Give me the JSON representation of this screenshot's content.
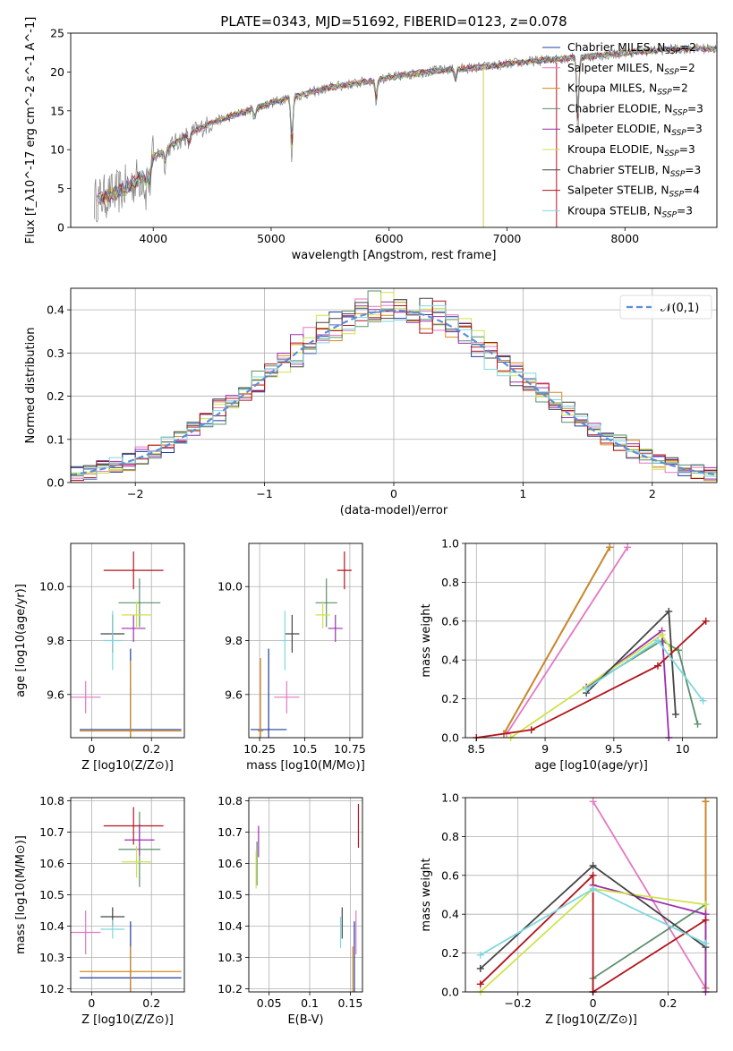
{
  "figure": {
    "title": "PLATE=0343, MJD=51692, FIBERID=0123, z=0.078"
  },
  "chart_data": [
    {
      "id": "spectrum",
      "type": "line",
      "title": "PLATE=0343, MJD=51692, FIBERID=0123, z=0.078",
      "xlabel": "wavelength [Angstrom, rest frame]",
      "ylabel": "Flux [f_λ10^-17 erg cm^-2 s^-1 A^-1]",
      "xlim": [
        3300,
        8780
      ],
      "ylim": [
        0,
        25
      ],
      "xticks": [
        4000,
        5000,
        6000,
        7000,
        8000
      ],
      "yticks": [
        0,
        5,
        10,
        15,
        20,
        25
      ],
      "grid": false,
      "legend": "right",
      "continuum": {
        "x": [
          3500,
          3700,
          3900,
          4000,
          4100,
          4300,
          4500,
          4700,
          4900,
          5100,
          5300,
          5500,
          5700,
          5900,
          6100,
          6300,
          6500,
          6700,
          6900,
          7100,
          7300,
          7500,
          7700,
          7900,
          8100,
          8300,
          8500,
          8780
        ],
        "y": [
          3.5,
          4.5,
          6.5,
          9.0,
          10.0,
          12.0,
          13.5,
          14.5,
          15.5,
          16.5,
          17.2,
          18.0,
          18.5,
          19.0,
          19.5,
          20.0,
          20.3,
          20.5,
          20.8,
          21.2,
          21.5,
          21.8,
          22.0,
          22.3,
          22.6,
          22.8,
          23.0,
          23.0
        ]
      },
      "series": [
        {
          "name": "Chabrier MILES, N_SSP=2",
          "color": "#1f3c9c"
        },
        {
          "name": "Salpeter MILES, N_SSP=2",
          "color": "#e377c2"
        },
        {
          "name": "Kroupa MILES, N_SSP=2",
          "color": "#d48a1e"
        },
        {
          "name": "Chabrier ELODIE, N_SSP=3",
          "color": "#5a8f6a"
        },
        {
          "name": "Salpeter ELODIE, N_SSP=3",
          "color": "#9b2fae"
        },
        {
          "name": "Kroupa ELODIE, N_SSP=3",
          "color": "#cfe24a"
        },
        {
          "name": "Chabrier STELIB, N_SSP=3",
          "color": "#444444"
        },
        {
          "name": "Salpeter STELIB, N_SSP=4",
          "color": "#b2141b"
        },
        {
          "name": "Kroupa STELIB, N_SSP=3",
          "color": "#7fd8e0"
        }
      ]
    },
    {
      "id": "residuals",
      "type": "line",
      "xlabel": "(data-model)/error",
      "ylabel": "Normed distribution",
      "xlim": [
        -2.5,
        2.5
      ],
      "ylim": [
        0,
        0.45
      ],
      "xticks": [
        -2,
        -1,
        0,
        1,
        2
      ],
      "yticks": [
        0.0,
        0.1,
        0.2,
        0.3,
        0.4
      ],
      "grid": true,
      "legend": "top-right",
      "reference": {
        "name": "𝒩(0,1)",
        "color": "#5b8fd6",
        "style": "dashed"
      },
      "histogram_bins": {
        "start": -2.5,
        "width": 0.1,
        "count": 50
      }
    },
    {
      "id": "age-vs-Z",
      "type": "scatter",
      "xlabel": "Z [log10(Z/Z⊙)]",
      "ylabel": "age  [log10(age/yr)]",
      "xlim": [
        -0.07,
        0.31
      ],
      "ylim": [
        9.44,
        10.16
      ],
      "xticks": [
        0.0,
        0.2
      ],
      "yticks": [
        9.6,
        9.8,
        10.0
      ],
      "grid": true,
      "points": [
        {
          "series": "Chabrier MILES",
          "x": 0.13,
          "y": 9.47,
          "xerr": 0.17,
          "yerr": 0.3
        },
        {
          "series": "Salpeter MILES",
          "x": -0.02,
          "y": 9.59,
          "xerr": 0.05,
          "yerr": 0.06
        },
        {
          "series": "Kroupa MILES",
          "x": 0.13,
          "y": 9.465,
          "xerr": 0.17,
          "yerr": 0.26
        },
        {
          "series": "Chabrier ELODIE",
          "x": 0.16,
          "y": 9.94,
          "xerr": 0.07,
          "yerr": 0.09
        },
        {
          "series": "Salpeter ELODIE",
          "x": 0.14,
          "y": 9.845,
          "xerr": 0.04,
          "yerr": 0.05
        },
        {
          "series": "Kroupa ELODIE",
          "x": 0.15,
          "y": 9.895,
          "xerr": 0.05,
          "yerr": 0.05
        },
        {
          "series": "Chabrier STELIB",
          "x": 0.07,
          "y": 9.825,
          "xerr": 0.04,
          "yerr": 0.07
        },
        {
          "series": "Salpeter STELIB",
          "x": 0.14,
          "y": 10.06,
          "xerr": 0.1,
          "yerr": 0.07
        },
        {
          "series": "Kroupa STELIB",
          "x": 0.07,
          "y": 9.8,
          "xerr": 0.03,
          "yerr": 0.11
        }
      ]
    },
    {
      "id": "age-vs-mass",
      "type": "scatter",
      "xlabel": "mass [log10(M/M⊙)]",
      "ylabel": "",
      "xlim": [
        10.19,
        10.82
      ],
      "ylim": [
        9.44,
        10.16
      ],
      "xticks": [
        10.25,
        10.5,
        10.75
      ],
      "yticks": [
        9.6,
        9.8,
        10.0
      ],
      "grid": true,
      "points": [
        {
          "series": "Chabrier MILES",
          "x": 10.3,
          "y": 9.47,
          "xerr": 0.1,
          "yerr": 0.3
        },
        {
          "series": "Salpeter MILES",
          "x": 10.4,
          "y": 9.59,
          "xerr": 0.07,
          "yerr": 0.06
        },
        {
          "series": "Kroupa MILES",
          "x": 10.255,
          "y": 9.465,
          "xerr": 0.015,
          "yerr": 0.27
        },
        {
          "series": "Chabrier ELODIE",
          "x": 10.62,
          "y": 9.94,
          "xerr": 0.06,
          "yerr": 0.09
        },
        {
          "series": "Salpeter ELODIE",
          "x": 10.67,
          "y": 9.845,
          "xerr": 0.04,
          "yerr": 0.05
        },
        {
          "series": "Kroupa ELODIE",
          "x": 10.6,
          "y": 9.895,
          "xerr": 0.04,
          "yerr": 0.05
        },
        {
          "series": "Chabrier STELIB",
          "x": 10.43,
          "y": 9.825,
          "xerr": 0.04,
          "yerr": 0.07
        },
        {
          "series": "Salpeter STELIB",
          "x": 10.72,
          "y": 10.06,
          "xerr": 0.04,
          "yerr": 0.07
        },
        {
          "series": "Kroupa STELIB",
          "x": 10.39,
          "y": 9.8,
          "xerr": 0.015,
          "yerr": 0.11
        }
      ]
    },
    {
      "id": "weight-vs-age",
      "type": "line",
      "xlabel": "age  [log10(age/yr)]",
      "ylabel": "mass weight",
      "xlim": [
        8.42,
        10.25
      ],
      "ylim": [
        0,
        1.0
      ],
      "xticks": [
        8.5,
        9.0,
        9.5,
        10.0
      ],
      "yticks": [
        0.0,
        0.2,
        0.4,
        0.6,
        0.8,
        1.0
      ],
      "grid": true,
      "series": [
        {
          "name": "Chabrier MILES",
          "x": [
            8.7,
            9.47
          ],
          "y": [
            0.02,
            0.98
          ]
        },
        {
          "name": "Salpeter MILES",
          "x": [
            8.72,
            9.6
          ],
          "y": [
            0.02,
            0.98
          ]
        },
        {
          "name": "Kroupa MILES",
          "x": [
            8.7,
            9.47
          ],
          "y": [
            0.02,
            0.98
          ]
        },
        {
          "name": "Chabrier ELODIE",
          "x": [
            9.3,
            9.85,
            9.97,
            10.11
          ],
          "y": [
            0.26,
            0.5,
            0.45,
            0.07
          ]
        },
        {
          "name": "Salpeter ELODIE",
          "x": [
            9.3,
            9.85,
            9.9
          ],
          "y": [
            0.26,
            0.55,
            0.0
          ]
        },
        {
          "name": "Kroupa ELODIE",
          "x": [
            8.75,
            9.85,
            9.92
          ],
          "y": [
            0.0,
            0.53,
            0.45
          ]
        },
        {
          "name": "Chabrier STELIB",
          "x": [
            9.3,
            9.9,
            9.95
          ],
          "y": [
            0.23,
            0.65,
            0.12
          ]
        },
        {
          "name": "Salpeter STELIB",
          "x": [
            8.5,
            8.9,
            9.82,
            10.17
          ],
          "y": [
            0.0,
            0.04,
            0.37,
            0.6
          ]
        },
        {
          "name": "Kroupa STELIB",
          "x": [
            9.3,
            9.82,
            10.15
          ],
          "y": [
            0.25,
            0.5,
            0.19
          ]
        }
      ]
    },
    {
      "id": "mass-vs-Z",
      "type": "scatter",
      "xlabel": "Z [log10(Z/Z⊙)]",
      "ylabel": "mass [log10(M/M⊙)]",
      "xlim": [
        -0.07,
        0.31
      ],
      "ylim": [
        10.19,
        10.81
      ],
      "xticks": [
        0.0,
        0.2
      ],
      "yticks": [
        10.2,
        10.3,
        10.4,
        10.5,
        10.6,
        10.7,
        10.8
      ],
      "grid": true,
      "points": [
        {
          "series": "Chabrier MILES",
          "x": 0.13,
          "y": 10.235,
          "xerr": 0.17,
          "yerr": 0.18
        },
        {
          "series": "Salpeter MILES",
          "x": -0.02,
          "y": 10.38,
          "xerr": 0.05,
          "yerr": 0.07
        },
        {
          "series": "Kroupa MILES",
          "x": 0.13,
          "y": 10.255,
          "xerr": 0.17,
          "yerr": 0.08
        },
        {
          "series": "Chabrier ELODIE",
          "x": 0.16,
          "y": 10.645,
          "xerr": 0.07,
          "yerr": 0.12
        },
        {
          "series": "Salpeter ELODIE",
          "x": 0.16,
          "y": 10.675,
          "xerr": 0.05,
          "yerr": 0.05
        },
        {
          "series": "Kroupa ELODIE",
          "x": 0.15,
          "y": 10.605,
          "xerr": 0.05,
          "yerr": 0.05
        },
        {
          "series": "Chabrier STELIB",
          "x": 0.07,
          "y": 10.43,
          "xerr": 0.04,
          "yerr": 0.03
        },
        {
          "series": "Salpeter STELIB",
          "x": 0.14,
          "y": 10.72,
          "xerr": 0.1,
          "yerr": 0.06
        },
        {
          "series": "Kroupa STELIB",
          "x": 0.07,
          "y": 10.39,
          "xerr": 0.04,
          "yerr": 0.03
        }
      ]
    },
    {
      "id": "mass-vs-EBV",
      "type": "scatter",
      "xlabel": "E(B-V)",
      "ylabel": "",
      "xlim": [
        0.025,
        0.165
      ],
      "ylim": [
        10.19,
        10.81
      ],
      "xticks": [
        0.05,
        0.1,
        0.15
      ],
      "yticks": [
        10.2,
        10.3,
        10.4,
        10.5,
        10.6,
        10.7,
        10.8
      ],
      "grid": true,
      "points": [
        {
          "series": "Chabrier MILES",
          "x": 0.155,
          "y": 10.235,
          "xerr": 0.0,
          "yerr": 0.18
        },
        {
          "series": "Salpeter MILES",
          "x": 0.157,
          "y": 10.38,
          "xerr": 0.0,
          "yerr": 0.07
        },
        {
          "series": "Kroupa MILES",
          "x": 0.153,
          "y": 10.255,
          "xerr": 0.0,
          "yerr": 0.08
        },
        {
          "series": "Chabrier ELODIE",
          "x": 0.035,
          "y": 10.6,
          "xerr": 0.0,
          "yerr": 0.07
        },
        {
          "series": "Salpeter ELODIE",
          "x": 0.037,
          "y": 10.67,
          "xerr": 0.0,
          "yerr": 0.05
        },
        {
          "series": "Kroupa ELODIE",
          "x": 0.034,
          "y": 10.58,
          "xerr": 0.0,
          "yerr": 0.06
        },
        {
          "series": "Chabrier STELIB",
          "x": 0.14,
          "y": 10.41,
          "xerr": 0.0,
          "yerr": 0.05
        },
        {
          "series": "Salpeter STELIB",
          "x": 0.16,
          "y": 10.72,
          "xerr": 0.0,
          "yerr": 0.07
        },
        {
          "series": "Kroupa STELIB",
          "x": 0.138,
          "y": 10.38,
          "xerr": 0.0,
          "yerr": 0.05
        }
      ]
    },
    {
      "id": "weight-vs-Z",
      "type": "line",
      "xlabel": "Z [log10(Z/Z⊙)]",
      "ylabel": "mass weight",
      "xlim": [
        -0.34,
        0.33
      ],
      "ylim": [
        0,
        1.0
      ],
      "xticks": [
        -0.2,
        0.0,
        0.2
      ],
      "yticks": [
        0.0,
        0.2,
        0.4,
        0.6,
        0.8,
        1.0
      ],
      "grid": true,
      "series": [
        {
          "name": "Chabrier MILES",
          "x": [
            0.3,
            0.3
          ],
          "y": [
            0.02,
            0.98
          ]
        },
        {
          "name": "Salpeter MILES",
          "x": [
            0.0,
            0.3
          ],
          "y": [
            0.98,
            0.02
          ]
        },
        {
          "name": "Kroupa MILES",
          "x": [
            0.3,
            0.3
          ],
          "y": [
            0.02,
            0.98
          ]
        },
        {
          "name": "Chabrier ELODIE",
          "x": [
            0.0,
            0.0,
            0.3
          ],
          "y": [
            0.0,
            0.07,
            0.45
          ]
        },
        {
          "name": "Salpeter ELODIE",
          "x": [
            0.0,
            0.3,
            0.3
          ],
          "y": [
            0.55,
            0.4,
            0.0
          ]
        },
        {
          "name": "Kroupa ELODIE",
          "x": [
            -0.3,
            0.0,
            0.3
          ],
          "y": [
            0.0,
            0.53,
            0.45
          ]
        },
        {
          "name": "Chabrier STELIB",
          "x": [
            -0.3,
            0.0,
            0.3
          ],
          "y": [
            0.12,
            0.65,
            0.23
          ]
        },
        {
          "name": "Salpeter STELIB",
          "x": [
            -0.3,
            0.0,
            0.0,
            0.3
          ],
          "y": [
            0.04,
            0.6,
            0.0,
            0.37
          ]
        },
        {
          "name": "Kroupa STELIB",
          "x": [
            -0.3,
            0.0,
            0.3
          ],
          "y": [
            0.19,
            0.53,
            0.25
          ]
        }
      ]
    }
  ]
}
